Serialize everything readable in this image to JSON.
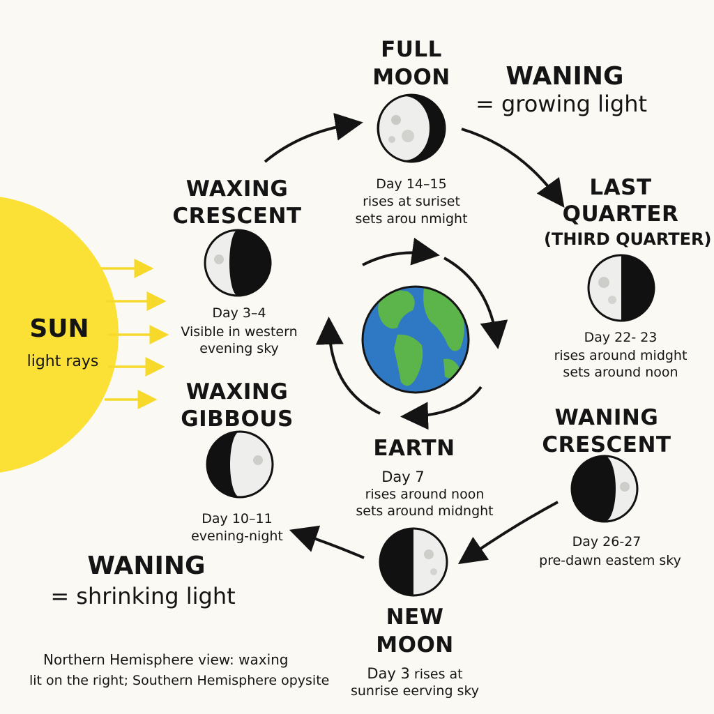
{
  "sun": {
    "label": "SUN",
    "sublabel": "light rays",
    "color": "#fbe036"
  },
  "earth": {
    "label": "EARTN",
    "ocean_color": "#2f78c4",
    "land_color": "#5cb54a"
  },
  "phases": [
    {
      "key": "full",
      "name": [
        "FULL",
        "MOON"
      ],
      "day": "Day 14–15",
      "lines": [
        "rises at suriset",
        "sets arou nmight"
      ]
    },
    {
      "key": "last",
      "name": [
        "LAST",
        "QUARTER",
        "(THIRD QUARTER)"
      ],
      "day": "Day 22- 23",
      "lines": [
        "rises around midght",
        "sets around noon"
      ]
    },
    {
      "key": "wancres",
      "name": [
        "WANING",
        "CRESCENT"
      ],
      "day": "Day 26-27",
      "lines": [
        "pre-dawn eastem sky"
      ]
    },
    {
      "key": "new",
      "name": [
        "NEW",
        "MOON"
      ],
      "day": "Day 3",
      "lines": [
        "rises at",
        "sunrise eerving sky"
      ]
    },
    {
      "key": "wgib",
      "name": [
        "WAXING",
        "GIBBOUS"
      ],
      "day": "Day 10–11",
      "lines": [
        "evening-night"
      ]
    },
    {
      "key": "wcres",
      "name": [
        "WAXING",
        "CRESCENT"
      ],
      "day": "Day 3–4",
      "lines": [
        "Visible in western",
        "evening sky"
      ]
    }
  ],
  "earth_info": {
    "day": "Day 7",
    "lines": [
      "rises around noon",
      "sets around midnght"
    ]
  },
  "legend": {
    "top_title": "WANING",
    "top_sub": "= growing light",
    "bottom_title": "WANING",
    "bottom_sub": "= shrinking light"
  },
  "footnote": [
    "Northern Hemisphere view: waxing",
    "lit on the right; Southern Hemisphere opysite"
  ],
  "colors": {
    "moon_light": "#eeeeec",
    "moon_dark": "#111111",
    "ink": "#141414"
  }
}
